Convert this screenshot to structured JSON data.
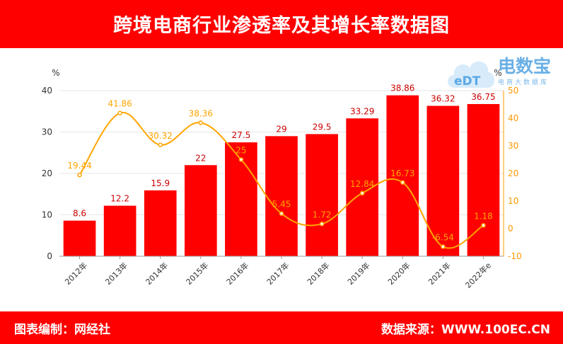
{
  "header": {
    "title": "跨境电商行业渗透率及其增长率数据图"
  },
  "footer": {
    "left": "图表编制：网经社",
    "right": "数据来源：WWW.100EC.CN"
  },
  "logo": {
    "name": "电数宝",
    "sub": "电商大数据库",
    "mark": "eDT"
  },
  "colors": {
    "brand": "#ff0000",
    "bar": "#ff0000",
    "line": "#ffa500",
    "right_axis": "#ff9900",
    "logo": "#6ab0e6"
  },
  "chart_data": {
    "type": "bar",
    "categories": [
      "2012年",
      "2013年",
      "2014年",
      "2015年",
      "2016年",
      "2017年",
      "2018年",
      "2019年",
      "2020年",
      "2021年",
      "2022年e"
    ],
    "series": [
      {
        "type": "bar",
        "axis": "left",
        "values": [
          8.6,
          12.2,
          15.9,
          22,
          27.5,
          29,
          29.5,
          33.29,
          38.86,
          36.32,
          36.75
        ]
      },
      {
        "type": "line",
        "axis": "right",
        "values": [
          19.44,
          41.86,
          30.32,
          38.36,
          25,
          5.45,
          1.72,
          12.84,
          16.73,
          -6.54,
          1.18
        ]
      }
    ],
    "y_left": {
      "unit": "%",
      "min": 0,
      "max": 40,
      "ticks": [
        0,
        10,
        20,
        30,
        40
      ]
    },
    "y_right": {
      "unit": "%",
      "min": -10,
      "max": 50,
      "ticks": [
        -10,
        0,
        10,
        20,
        30,
        40,
        50
      ]
    },
    "grid": true
  }
}
